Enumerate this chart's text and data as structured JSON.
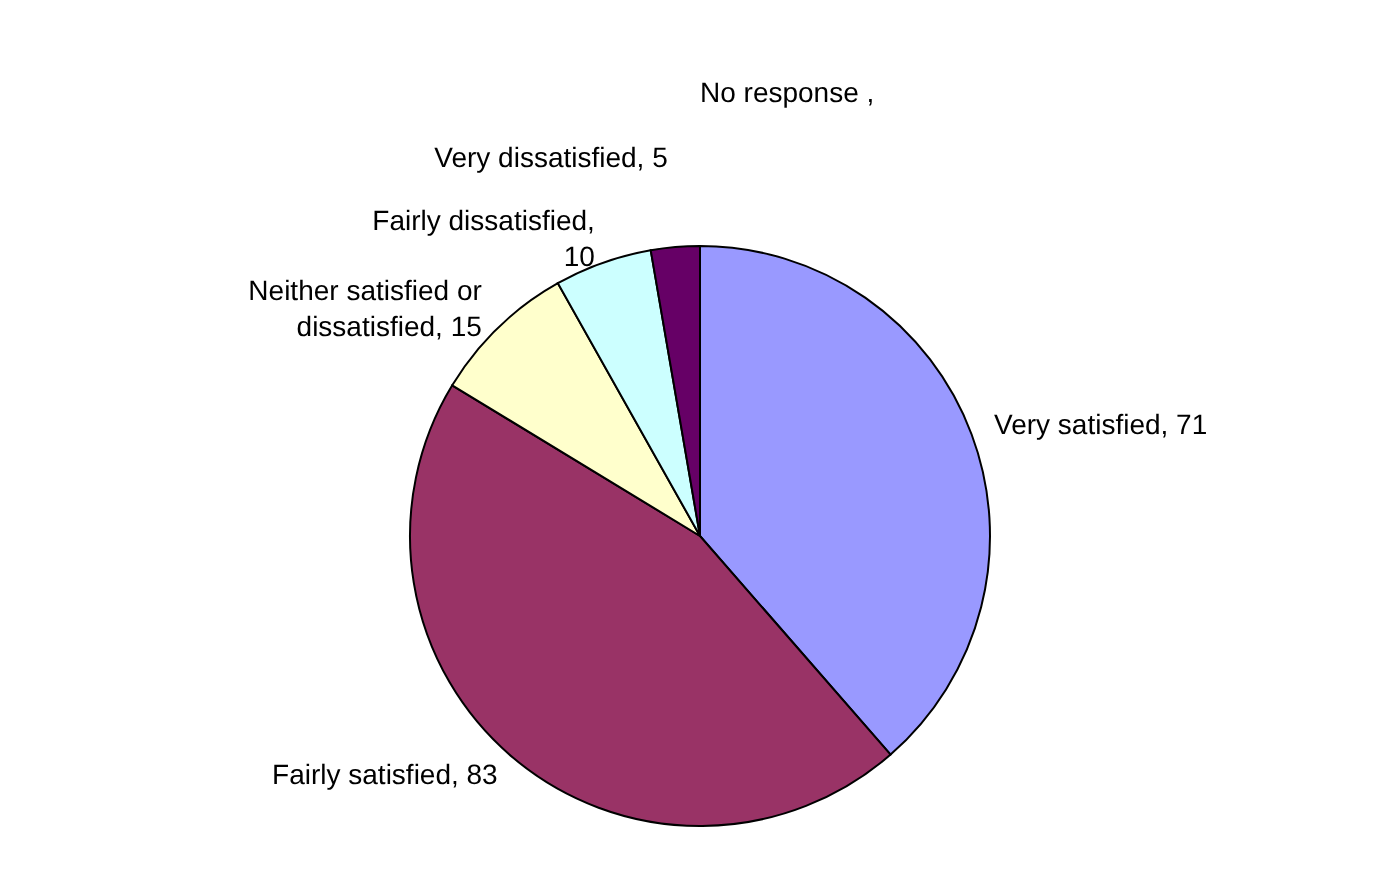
{
  "chart_data": {
    "type": "pie",
    "categories": [
      "Very satisfied",
      "Fairly satisfied",
      "Neither satisfied or dissatisfied",
      "Fairly dissatisfied",
      "Very dissatisfied",
      "No response "
    ],
    "values": [
      71,
      83,
      15,
      10,
      5,
      null
    ],
    "colors": [
      "#9999ff",
      "#993366",
      "#ffffcc",
      "#ccffff",
      "#660066",
      null
    ],
    "value_labels": [
      ", 71",
      ", 83",
      ", 15",
      ", 10",
      ", 5",
      ","
    ]
  }
}
